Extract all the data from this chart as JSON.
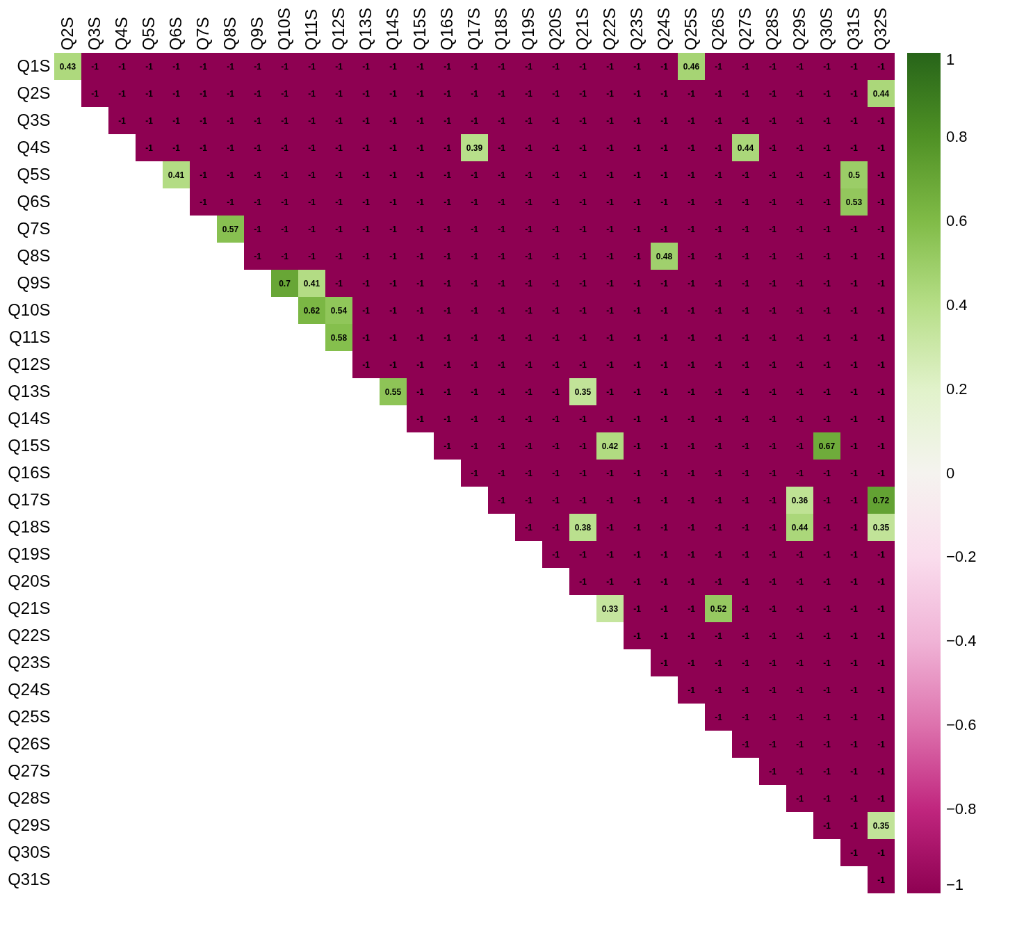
{
  "chart_data": {
    "type": "heatmap",
    "data_labels": true,
    "categories": [
      "Q2S",
      "Q3S",
      "Q4S",
      "Q5S",
      "Q6S",
      "Q7S",
      "Q8S",
      "Q9S",
      "Q10S",
      "Q11S",
      "Q12S",
      "Q13S",
      "Q14S",
      "Q15S",
      "Q16S",
      "Q17S",
      "Q18S",
      "Q19S",
      "Q20S",
      "Q21S",
      "Q22S",
      "Q23S",
      "Q24S",
      "Q25S",
      "Q26S",
      "Q27S",
      "Q28S",
      "Q29S",
      "Q30S",
      "Q31S",
      "Q32S"
    ],
    "y_categories": [
      "Q1S",
      "Q2S",
      "Q3S",
      "Q4S",
      "Q5S",
      "Q6S",
      "Q7S",
      "Q8S",
      "Q9S",
      "Q10S",
      "Q11S",
      "Q12S",
      "Q13S",
      "Q14S",
      "Q15S",
      "Q16S",
      "Q17S",
      "Q18S",
      "Q19S",
      "Q20S",
      "Q21S",
      "Q22S",
      "Q23S",
      "Q24S",
      "Q25S",
      "Q26S",
      "Q27S",
      "Q28S",
      "Q29S",
      "Q30S",
      "Q31S"
    ],
    "cells": [
      [
        0.43,
        -1,
        -1,
        -1,
        -1,
        -1,
        -1,
        -1,
        -1,
        -1,
        -1,
        -1,
        -1,
        -1,
        -1,
        -1,
        -1,
        -1,
        -1,
        -1,
        -1,
        -1,
        -1,
        0.46,
        -1,
        -1,
        -1,
        -1,
        -1,
        -1,
        -1
      ],
      [
        null,
        -1,
        -1,
        -1,
        -1,
        -1,
        -1,
        -1,
        -1,
        -1,
        -1,
        -1,
        -1,
        -1,
        -1,
        -1,
        -1,
        -1,
        -1,
        -1,
        -1,
        -1,
        -1,
        -1,
        -1,
        -1,
        -1,
        -1,
        -1,
        -1,
        0.44
      ],
      [
        null,
        null,
        -1,
        -1,
        -1,
        -1,
        -1,
        -1,
        -1,
        -1,
        -1,
        -1,
        -1,
        -1,
        -1,
        -1,
        -1,
        -1,
        -1,
        -1,
        -1,
        -1,
        -1,
        -1,
        -1,
        -1,
        -1,
        -1,
        -1,
        -1,
        -1
      ],
      [
        null,
        null,
        null,
        -1,
        -1,
        -1,
        -1,
        -1,
        -1,
        -1,
        -1,
        -1,
        -1,
        -1,
        -1,
        0.39,
        -1,
        -1,
        -1,
        -1,
        -1,
        -1,
        -1,
        -1,
        -1,
        0.44,
        -1,
        -1,
        -1,
        -1,
        -1
      ],
      [
        null,
        null,
        null,
        null,
        0.41,
        -1,
        -1,
        -1,
        -1,
        -1,
        -1,
        -1,
        -1,
        -1,
        -1,
        -1,
        -1,
        -1,
        -1,
        -1,
        -1,
        -1,
        -1,
        -1,
        -1,
        -1,
        -1,
        -1,
        -1,
        0.5,
        -1
      ],
      [
        null,
        null,
        null,
        null,
        null,
        -1,
        -1,
        -1,
        -1,
        -1,
        -1,
        -1,
        -1,
        -1,
        -1,
        -1,
        -1,
        -1,
        -1,
        -1,
        -1,
        -1,
        -1,
        -1,
        -1,
        -1,
        -1,
        -1,
        -1,
        0.53,
        -1
      ],
      [
        null,
        null,
        null,
        null,
        null,
        null,
        0.57,
        -1,
        -1,
        -1,
        -1,
        -1,
        -1,
        -1,
        -1,
        -1,
        -1,
        -1,
        -1,
        -1,
        -1,
        -1,
        -1,
        -1,
        -1,
        -1,
        -1,
        -1,
        -1,
        -1,
        -1
      ],
      [
        null,
        null,
        null,
        null,
        null,
        null,
        null,
        -1,
        -1,
        -1,
        -1,
        -1,
        -1,
        -1,
        -1,
        -1,
        -1,
        -1,
        -1,
        -1,
        -1,
        -1,
        0.48,
        -1,
        -1,
        -1,
        -1,
        -1,
        -1,
        -1,
        -1
      ],
      [
        null,
        null,
        null,
        null,
        null,
        null,
        null,
        null,
        0.7,
        0.41,
        -1,
        -1,
        -1,
        -1,
        -1,
        -1,
        -1,
        -1,
        -1,
        -1,
        -1,
        -1,
        -1,
        -1,
        -1,
        -1,
        -1,
        -1,
        -1,
        -1,
        -1
      ],
      [
        null,
        null,
        null,
        null,
        null,
        null,
        null,
        null,
        null,
        0.62,
        0.54,
        -1,
        -1,
        -1,
        -1,
        -1,
        -1,
        -1,
        -1,
        -1,
        -1,
        -1,
        -1,
        -1,
        -1,
        -1,
        -1,
        -1,
        -1,
        -1,
        -1
      ],
      [
        null,
        null,
        null,
        null,
        null,
        null,
        null,
        null,
        null,
        null,
        0.58,
        -1,
        -1,
        -1,
        -1,
        -1,
        -1,
        -1,
        -1,
        -1,
        -1,
        -1,
        -1,
        -1,
        -1,
        -1,
        -1,
        -1,
        -1,
        -1,
        -1
      ],
      [
        null,
        null,
        null,
        null,
        null,
        null,
        null,
        null,
        null,
        null,
        null,
        -1,
        -1,
        -1,
        -1,
        -1,
        -1,
        -1,
        -1,
        -1,
        -1,
        -1,
        -1,
        -1,
        -1,
        -1,
        -1,
        -1,
        -1,
        -1,
        -1
      ],
      [
        null,
        null,
        null,
        null,
        null,
        null,
        null,
        null,
        null,
        null,
        null,
        null,
        0.55,
        -1,
        -1,
        -1,
        -1,
        -1,
        -1,
        0.35,
        -1,
        -1,
        -1,
        -1,
        -1,
        -1,
        -1,
        -1,
        -1,
        -1,
        -1
      ],
      [
        null,
        null,
        null,
        null,
        null,
        null,
        null,
        null,
        null,
        null,
        null,
        null,
        null,
        -1,
        -1,
        -1,
        -1,
        -1,
        -1,
        -1,
        -1,
        -1,
        -1,
        -1,
        -1,
        -1,
        -1,
        -1,
        -1,
        -1,
        -1
      ],
      [
        null,
        null,
        null,
        null,
        null,
        null,
        null,
        null,
        null,
        null,
        null,
        null,
        null,
        null,
        -1,
        -1,
        -1,
        -1,
        -1,
        -1,
        0.42,
        -1,
        -1,
        -1,
        -1,
        -1,
        -1,
        -1,
        0.67,
        -1,
        -1
      ],
      [
        null,
        null,
        null,
        null,
        null,
        null,
        null,
        null,
        null,
        null,
        null,
        null,
        null,
        null,
        null,
        -1,
        -1,
        -1,
        -1,
        -1,
        -1,
        -1,
        -1,
        -1,
        -1,
        -1,
        -1,
        -1,
        -1,
        -1,
        -1
      ],
      [
        null,
        null,
        null,
        null,
        null,
        null,
        null,
        null,
        null,
        null,
        null,
        null,
        null,
        null,
        null,
        null,
        -1,
        -1,
        -1,
        -1,
        -1,
        -1,
        -1,
        -1,
        -1,
        -1,
        -1,
        0.36,
        -1,
        -1,
        0.72
      ],
      [
        null,
        null,
        null,
        null,
        null,
        null,
        null,
        null,
        null,
        null,
        null,
        null,
        null,
        null,
        null,
        null,
        null,
        -1,
        -1,
        0.38,
        -1,
        -1,
        -1,
        -1,
        -1,
        -1,
        -1,
        0.44,
        -1,
        -1,
        0.35
      ],
      [
        null,
        null,
        null,
        null,
        null,
        null,
        null,
        null,
        null,
        null,
        null,
        null,
        null,
        null,
        null,
        null,
        null,
        null,
        -1,
        -1,
        -1,
        -1,
        -1,
        -1,
        -1,
        -1,
        -1,
        -1,
        -1,
        -1,
        -1
      ],
      [
        null,
        null,
        null,
        null,
        null,
        null,
        null,
        null,
        null,
        null,
        null,
        null,
        null,
        null,
        null,
        null,
        null,
        null,
        null,
        -1,
        -1,
        -1,
        -1,
        -1,
        -1,
        -1,
        -1,
        -1,
        -1,
        -1,
        -1
      ],
      [
        null,
        null,
        null,
        null,
        null,
        null,
        null,
        null,
        null,
        null,
        null,
        null,
        null,
        null,
        null,
        null,
        null,
        null,
        null,
        null,
        0.33,
        -1,
        -1,
        -1,
        0.52,
        -1,
        -1,
        -1,
        -1,
        -1,
        -1
      ],
      [
        null,
        null,
        null,
        null,
        null,
        null,
        null,
        null,
        null,
        null,
        null,
        null,
        null,
        null,
        null,
        null,
        null,
        null,
        null,
        null,
        null,
        -1,
        -1,
        -1,
        -1,
        -1,
        -1,
        -1,
        -1,
        -1,
        -1
      ],
      [
        null,
        null,
        null,
        null,
        null,
        null,
        null,
        null,
        null,
        null,
        null,
        null,
        null,
        null,
        null,
        null,
        null,
        null,
        null,
        null,
        null,
        null,
        -1,
        -1,
        -1,
        -1,
        -1,
        -1,
        -1,
        -1,
        -1
      ],
      [
        null,
        null,
        null,
        null,
        null,
        null,
        null,
        null,
        null,
        null,
        null,
        null,
        null,
        null,
        null,
        null,
        null,
        null,
        null,
        null,
        null,
        null,
        null,
        -1,
        -1,
        -1,
        -1,
        -1,
        -1,
        -1,
        -1
      ],
      [
        null,
        null,
        null,
        null,
        null,
        null,
        null,
        null,
        null,
        null,
        null,
        null,
        null,
        null,
        null,
        null,
        null,
        null,
        null,
        null,
        null,
        null,
        null,
        null,
        -1,
        -1,
        -1,
        -1,
        -1,
        -1,
        -1
      ],
      [
        null,
        null,
        null,
        null,
        null,
        null,
        null,
        null,
        null,
        null,
        null,
        null,
        null,
        null,
        null,
        null,
        null,
        null,
        null,
        null,
        null,
        null,
        null,
        null,
        null,
        -1,
        -1,
        -1,
        -1,
        -1,
        -1
      ],
      [
        null,
        null,
        null,
        null,
        null,
        null,
        null,
        null,
        null,
        null,
        null,
        null,
        null,
        null,
        null,
        null,
        null,
        null,
        null,
        null,
        null,
        null,
        null,
        null,
        null,
        null,
        -1,
        -1,
        -1,
        -1,
        -1
      ],
      [
        null,
        null,
        null,
        null,
        null,
        null,
        null,
        null,
        null,
        null,
        null,
        null,
        null,
        null,
        null,
        null,
        null,
        null,
        null,
        null,
        null,
        null,
        null,
        null,
        null,
        null,
        null,
        -1,
        -1,
        -1,
        -1
      ],
      [
        null,
        null,
        null,
        null,
        null,
        null,
        null,
        null,
        null,
        null,
        null,
        null,
        null,
        null,
        null,
        null,
        null,
        null,
        null,
        null,
        null,
        null,
        null,
        null,
        null,
        null,
        null,
        null,
        -1,
        -1,
        0.35
      ],
      [
        null,
        null,
        null,
        null,
        null,
        null,
        null,
        null,
        null,
        null,
        null,
        null,
        null,
        null,
        null,
        null,
        null,
        null,
        null,
        null,
        null,
        null,
        null,
        null,
        null,
        null,
        null,
        null,
        null,
        -1,
        -1
      ],
      [
        null,
        null,
        null,
        null,
        null,
        null,
        null,
        null,
        null,
        null,
        null,
        null,
        null,
        null,
        null,
        null,
        null,
        null,
        null,
        null,
        null,
        null,
        null,
        null,
        null,
        null,
        null,
        null,
        null,
        null,
        -1
      ]
    ],
    "clim": [
      -1,
      1
    ],
    "cticks": [
      {
        "value": -1,
        "label": "−1"
      },
      {
        "value": -0.8,
        "label": "−0.8"
      },
      {
        "value": -0.6,
        "label": "−0.6"
      },
      {
        "value": -0.4,
        "label": "−0.4"
      },
      {
        "value": -0.2,
        "label": "−0.2"
      },
      0,
      0.2,
      0.4,
      0.6,
      0.8,
      1
    ]
  }
}
